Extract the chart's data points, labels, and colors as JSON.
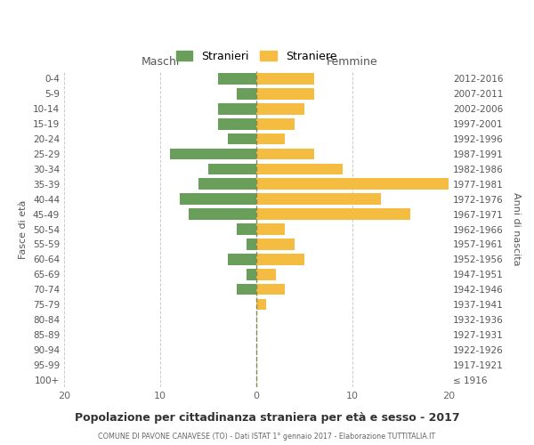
{
  "age_groups": [
    "100+",
    "95-99",
    "90-94",
    "85-89",
    "80-84",
    "75-79",
    "70-74",
    "65-69",
    "60-64",
    "55-59",
    "50-54",
    "45-49",
    "40-44",
    "35-39",
    "30-34",
    "25-29",
    "20-24",
    "15-19",
    "10-14",
    "5-9",
    "0-4"
  ],
  "birth_years": [
    "≤ 1916",
    "1917-1921",
    "1922-1926",
    "1927-1931",
    "1932-1936",
    "1937-1941",
    "1942-1946",
    "1947-1951",
    "1952-1956",
    "1957-1961",
    "1962-1966",
    "1967-1971",
    "1972-1976",
    "1977-1981",
    "1982-1986",
    "1987-1991",
    "1992-1996",
    "1997-2001",
    "2002-2006",
    "2007-2011",
    "2012-2016"
  ],
  "maschi": [
    0,
    0,
    0,
    0,
    0,
    0,
    2,
    1,
    3,
    1,
    2,
    7,
    8,
    6,
    5,
    9,
    3,
    4,
    4,
    2,
    4
  ],
  "femmine": [
    0,
    0,
    0,
    0,
    0,
    1,
    3,
    2,
    5,
    4,
    3,
    16,
    13,
    20,
    9,
    6,
    3,
    4,
    5,
    6,
    6
  ],
  "maschi_color": "#6a9e5b",
  "femmine_color": "#f5bc42",
  "bg_color": "#ffffff",
  "grid_color": "#cccccc",
  "title": "Popolazione per cittadinanza straniera per età e sesso - 2017",
  "subtitle": "COMUNE DI PAVONE CANAVESE (TO) - Dati ISTAT 1° gennaio 2017 - Elaborazione TUTTITALIA.IT",
  "xlabel_left": "Maschi",
  "xlabel_right": "Femmine",
  "ylabel_left": "Fasce di età",
  "ylabel_right": "Anni di nascita",
  "legend_maschi": "Stranieri",
  "legend_femmine": "Straniere",
  "xlim": 20,
  "bar_height": 0.75
}
